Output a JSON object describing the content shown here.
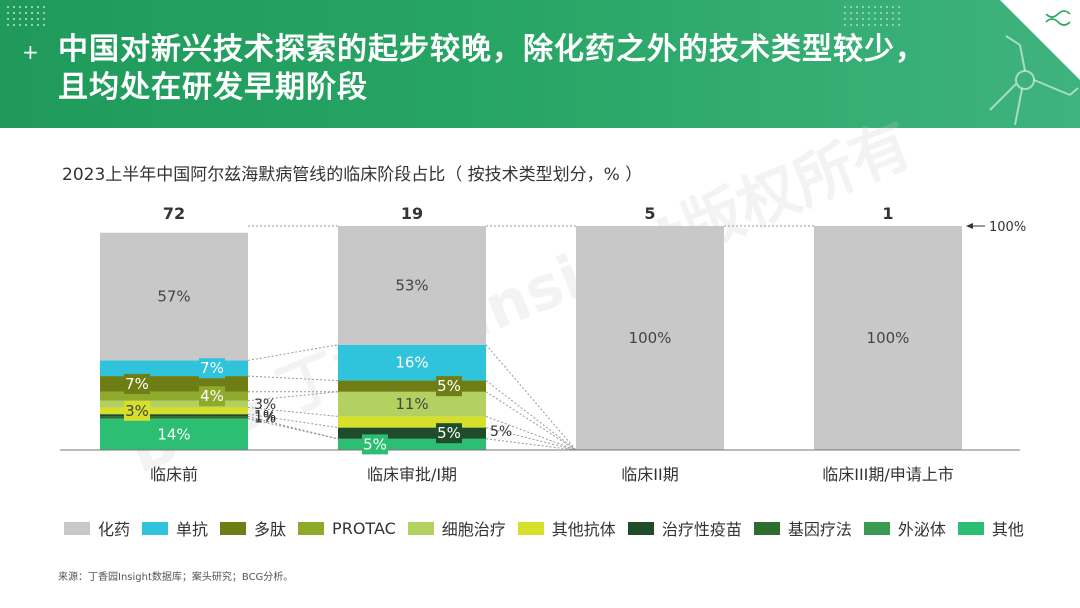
{
  "header": {
    "title_line1": "中国对新兴技术探索的起步较晚，除化药之外的技术类型较少，",
    "title_line2": "且均处在研发早期阶段",
    "plus": "+"
  },
  "subtitle": "2023上半年中国阿尔兹海默病管线的临床阶段占比（ 按技术类型划分，% ）",
  "source": "来源：丁香园Insight数据库；案头研究；BCG分析。",
  "watermark": "BCG 丁香园 Insight版权所有",
  "chart_data": {
    "type": "bar",
    "stacked": "percent",
    "categories": [
      "临床前",
      "临床审批/I期",
      "临床II期",
      "临床III期/申请上市"
    ],
    "totals": [
      "72",
      "19",
      "5",
      "1"
    ],
    "hundred_label": "100%",
    "series": [
      {
        "name": "其他",
        "color": "#2cbf74",
        "values": [
          14,
          5,
          0,
          0
        ],
        "labels": [
          "14%",
          "5%",
          "",
          ""
        ]
      },
      {
        "name": "外泌体",
        "color": "#3a9a52",
        "values": [
          0,
          0,
          0,
          0
        ],
        "labels": [
          "",
          "",
          "",
          ""
        ]
      },
      {
        "name": "基因疗法",
        "color": "#2d6e2e",
        "values": [
          1,
          0,
          0,
          0
        ],
        "labels": [
          "1%",
          "",
          "",
          ""
        ]
      },
      {
        "name": "治疗性疫苗",
        "color": "#1f4d2c",
        "values": [
          1,
          5,
          0,
          0
        ],
        "labels": [
          "1%",
          "5%",
          "",
          ""
        ]
      },
      {
        "name": "其他抗体",
        "color": "#d6e02a",
        "values": [
          3,
          5,
          0,
          0
        ],
        "labels": [
          "3%",
          "5%",
          "",
          ""
        ]
      },
      {
        "name": "细胞治疗",
        "color": "#b3d160",
        "values": [
          3,
          11,
          0,
          0
        ],
        "labels": [
          "3%",
          "11%",
          "",
          ""
        ]
      },
      {
        "name": "PROTAC",
        "color": "#8faa2a",
        "values": [
          4,
          0,
          0,
          0
        ],
        "labels": [
          "4%",
          "",
          "",
          ""
        ]
      },
      {
        "name": "多肽",
        "color": "#6e7d14",
        "values": [
          7,
          5,
          0,
          0
        ],
        "labels": [
          "7%",
          "5%",
          "",
          ""
        ]
      },
      {
        "name": "单抗",
        "color": "#2fc3dc",
        "values": [
          7,
          16,
          0,
          0
        ],
        "labels": [
          "7%",
          "16%",
          "",
          ""
        ]
      },
      {
        "name": "化药",
        "color": "#c8c8c8",
        "values": [
          57,
          53,
          100,
          100
        ],
        "labels": [
          "57%",
          "53%",
          "100%",
          "100%"
        ]
      }
    ],
    "ylim": [
      0,
      100
    ]
  },
  "legend_order": [
    "化药",
    "单抗",
    "多肽",
    "PROTAC",
    "细胞治疗",
    "其他抗体",
    "治疗性疫苗",
    "基因疗法",
    "外泌体",
    "其他"
  ]
}
